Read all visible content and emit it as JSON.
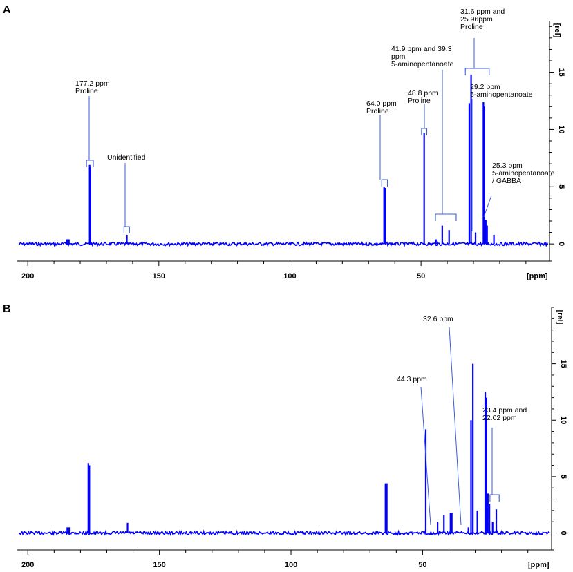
{
  "chart_data": [
    {
      "type": "line",
      "panel": "A",
      "xlabel": "[ppm]",
      "ylabel": "[rel]",
      "xlim": [
        204,
        1
      ],
      "ylim": [
        -1.5,
        19.5
      ],
      "x_ticks": [
        200,
        150,
        100,
        50
      ],
      "y_ticks": [
        0,
        5,
        10,
        15
      ],
      "color": "#0000ff",
      "peaks": [
        {
          "x": 185.0,
          "y": 0.4
        },
        {
          "x": 184.3,
          "y": 0.4
        },
        {
          "x": 176.4,
          "y": 6.9
        },
        {
          "x": 176.1,
          "y": 6.7
        },
        {
          "x": 162.2,
          "y": 0.8
        },
        {
          "x": 64.1,
          "y": 5.0
        },
        {
          "x": 63.7,
          "y": 4.9
        },
        {
          "x": 48.8,
          "y": 9.7
        },
        {
          "x": 44.3,
          "y": 0.4
        },
        {
          "x": 41.9,
          "y": 1.6
        },
        {
          "x": 39.3,
          "y": 1.2
        },
        {
          "x": 31.6,
          "y": 12.3
        },
        {
          "x": 30.9,
          "y": 14.8
        },
        {
          "x": 29.2,
          "y": 1.0
        },
        {
          "x": 26.2,
          "y": 12.4
        },
        {
          "x": 25.9,
          "y": 12.0
        },
        {
          "x": 25.3,
          "y": 2.1
        },
        {
          "x": 24.8,
          "y": 1.6
        },
        {
          "x": 22.2,
          "y": 0.8
        }
      ],
      "annotations": [
        {
          "lines": [
            "177.2 ppm",
            "Proline"
          ]
        },
        {
          "lines": [
            "Unidentified"
          ]
        },
        {
          "lines": [
            "64.0 ppm",
            "Proline"
          ]
        },
        {
          "lines": [
            "48.8 ppm",
            "Proline"
          ]
        },
        {
          "lines": [
            "41.9 ppm and 39.3",
            "ppm",
            "5-aminopentanoate"
          ]
        },
        {
          "lines": [
            "31.6 ppm and",
            "25.96ppm",
            "Proline"
          ]
        },
        {
          "lines": [
            "29.2 ppm",
            "5-aminopentanoate"
          ]
        },
        {
          "lines": [
            "25.3 ppm",
            "5-aminopentanoate",
            "/ GABBA"
          ]
        }
      ]
    },
    {
      "type": "line",
      "panel": "B",
      "xlabel": "[ppm]",
      "ylabel": "[rel]",
      "xlim": [
        204,
        1
      ],
      "ylim": [
        -1.5,
        20.0
      ],
      "x_ticks": [
        200,
        150,
        100,
        50
      ],
      "y_ticks": [
        0,
        5,
        10,
        15
      ],
      "color": "#0000ff",
      "peaks": [
        {
          "x": 185.0,
          "y": 0.5
        },
        {
          "x": 184.3,
          "y": 0.5
        },
        {
          "x": 177.0,
          "y": 6.2
        },
        {
          "x": 176.6,
          "y": 6.0
        },
        {
          "x": 162.1,
          "y": 0.9
        },
        {
          "x": 64.1,
          "y": 4.4
        },
        {
          "x": 63.6,
          "y": 4.4
        },
        {
          "x": 48.8,
          "y": 9.2
        },
        {
          "x": 44.3,
          "y": 1.0
        },
        {
          "x": 41.9,
          "y": 1.6
        },
        {
          "x": 39.4,
          "y": 1.8
        },
        {
          "x": 38.9,
          "y": 1.8
        },
        {
          "x": 32.6,
          "y": 0.5
        },
        {
          "x": 31.6,
          "y": 10.0
        },
        {
          "x": 30.9,
          "y": 15.0
        },
        {
          "x": 29.2,
          "y": 2.0
        },
        {
          "x": 26.2,
          "y": 12.5
        },
        {
          "x": 25.8,
          "y": 12.0
        },
        {
          "x": 25.2,
          "y": 3.5
        },
        {
          "x": 24.6,
          "y": 2.6
        },
        {
          "x": 23.4,
          "y": 1.0
        },
        {
          "x": 22.0,
          "y": 2.1
        }
      ],
      "annotations": [
        {
          "lines": [
            "44.3 ppm"
          ]
        },
        {
          "lines": [
            "32.6 ppm"
          ]
        },
        {
          "lines": [
            "23.4 ppm and",
            "22.02 ppm"
          ]
        }
      ]
    }
  ]
}
